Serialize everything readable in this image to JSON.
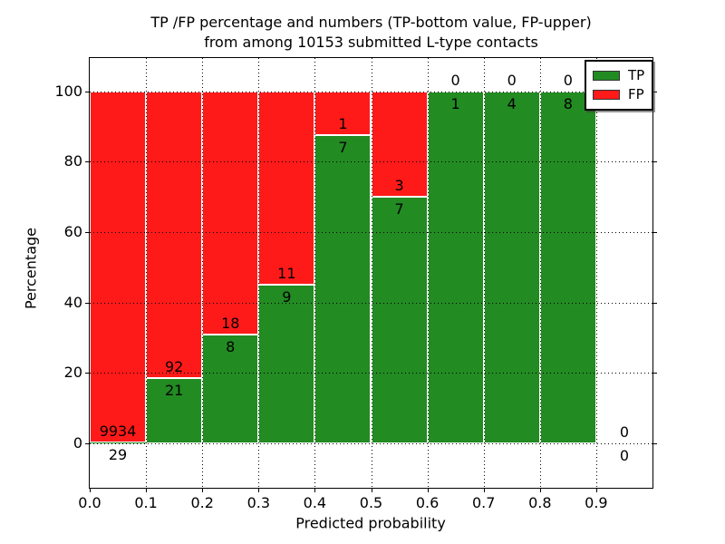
{
  "chart_data": {
    "type": "bar",
    "mode": "stacked-percentage",
    "title_line1": "TP /FP percentage and numbers (TP-bottom value, FP-upper)",
    "title_line2": "from among 10153 submitted L-type contacts",
    "xlabel": "Predicted probability",
    "ylabel": "Percentage",
    "total_submitted": 10153,
    "grid": "dotted",
    "legend_position": "upper right",
    "xlim": [
      0.0,
      1.0
    ],
    "ylim_displayed": [
      -12.6,
      109.4
    ],
    "x_ticks": [
      "0.0",
      "0.1",
      "0.2",
      "0.3",
      "0.4",
      "0.5",
      "0.6",
      "0.7",
      "0.8",
      "0.9"
    ],
    "y_ticks": [
      "0",
      "20",
      "40",
      "60",
      "80",
      "100"
    ],
    "series": [
      {
        "name": "TP",
        "color": "#228B22"
      },
      {
        "name": "FP",
        "color": "#FF1A1A"
      }
    ],
    "bins": [
      {
        "range": "0.0-0.1",
        "tp": 29,
        "fp": 9934,
        "tp_percent": 0.29
      },
      {
        "range": "0.1-0.2",
        "tp": 21,
        "fp": 92,
        "tp_percent": 18.58
      },
      {
        "range": "0.2-0.3",
        "tp": 8,
        "fp": 18,
        "tp_percent": 30.77
      },
      {
        "range": "0.3-0.4",
        "tp": 9,
        "fp": 11,
        "tp_percent": 45.0
      },
      {
        "range": "0.4-0.5",
        "tp": 7,
        "fp": 1,
        "tp_percent": 87.5
      },
      {
        "range": "0.5-0.6",
        "tp": 7,
        "fp": 3,
        "tp_percent": 70.0
      },
      {
        "range": "0.6-0.7",
        "tp": 1,
        "fp": 0,
        "tp_percent": 100.0
      },
      {
        "range": "0.7-0.8",
        "tp": 4,
        "fp": 0,
        "tp_percent": 100.0
      },
      {
        "range": "0.8-0.9",
        "tp": 8,
        "fp": 0,
        "tp_percent": 100.0
      },
      {
        "range": "0.9-1.0",
        "tp": 0,
        "fp": 0,
        "tp_percent": null
      }
    ]
  }
}
